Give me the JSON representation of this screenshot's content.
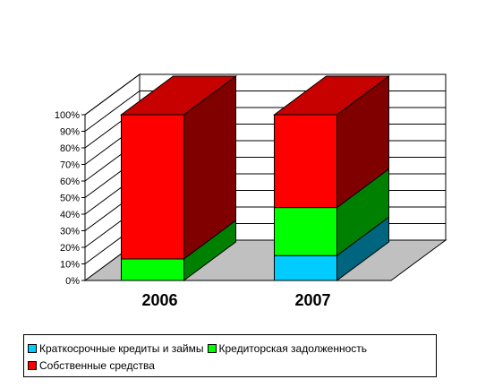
{
  "chart_data": {
    "type": "bar",
    "stacked": true,
    "percent_stacked": true,
    "three_d": true,
    "title": "",
    "xlabel": "",
    "ylabel": "",
    "categories": [
      "2006",
      "2007"
    ],
    "ylim": [
      0,
      100
    ],
    "ytick_labels": [
      "0%",
      "10%",
      "20%",
      "30%",
      "40%",
      "50%",
      "60%",
      "70%",
      "80%",
      "90%",
      "100%"
    ],
    "grid": true,
    "legend_position": "bottom",
    "series": [
      {
        "name": "Краткосрочные кредиты и займы",
        "color": "#00CCFF",
        "values": [
          0,
          15
        ]
      },
      {
        "name": "Кредиторская задолженность",
        "color": "#00FF00",
        "values": [
          13,
          29
        ]
      },
      {
        "name": "Собственные средства",
        "color": "#FF0000",
        "values": [
          87,
          56
        ]
      }
    ]
  }
}
